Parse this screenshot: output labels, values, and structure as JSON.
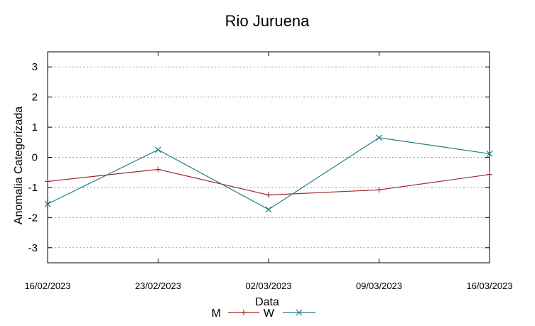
{
  "chart_data": {
    "type": "line",
    "title": "Rio Juruena",
    "xlabel": "Data",
    "ylabel": "Anomalia Categorizada",
    "categories": [
      "16/02/2023",
      "23/02/2023",
      "02/03/2023",
      "09/03/2023",
      "16/03/2023"
    ],
    "ylim": [
      -3.5,
      3.5
    ],
    "yticks": [
      "3",
      "2",
      "1",
      "0",
      "-1",
      "-2",
      "-3"
    ],
    "ytick_values": [
      3,
      2,
      1,
      0,
      -1,
      -2,
      -3
    ],
    "grid": true,
    "legend_position": "bottom",
    "series": [
      {
        "name": "M",
        "color": "#a0282b",
        "marker": "plus",
        "values": [
          -0.8,
          -0.4,
          -1.25,
          -1.08,
          -0.57
        ]
      },
      {
        "name": "W",
        "color": "#207f86",
        "marker": "x",
        "values": [
          -1.55,
          0.25,
          -1.73,
          0.65,
          0.12
        ]
      }
    ]
  }
}
